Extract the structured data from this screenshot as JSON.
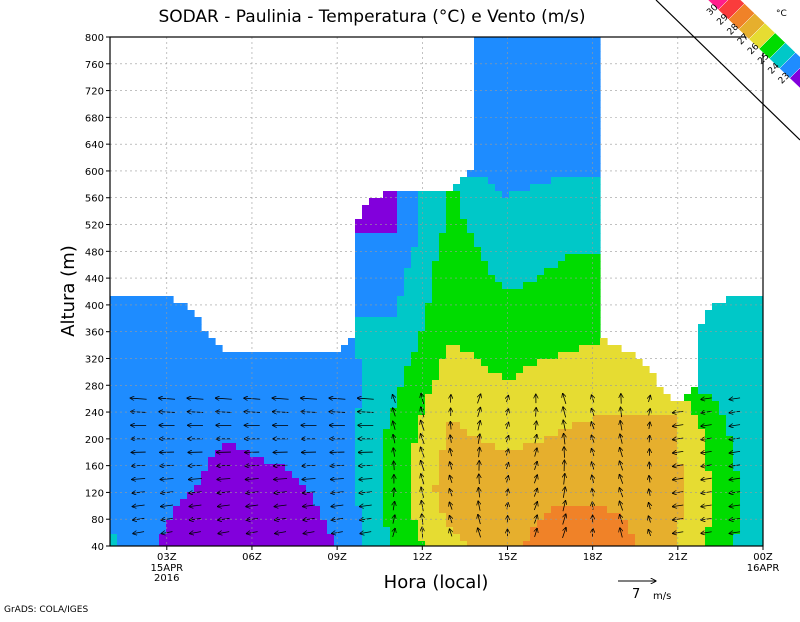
{
  "chart_data": {
    "type": "heatmap",
    "title": "SODAR - Paulinia - Temperatura (°C) e Vento (m/s)",
    "xlabel": "Hora (local)",
    "ylabel": "Altura (m)",
    "y_ticks": [
      "40",
      "80",
      "120",
      "160",
      "200",
      "240",
      "280",
      "320",
      "360",
      "400",
      "440",
      "480",
      "520",
      "560",
      "600",
      "640",
      "680",
      "720",
      "760",
      "800"
    ],
    "ylim": [
      40,
      800
    ],
    "x_ticks": [
      {
        "label": "03Z",
        "sub": [
          "15APR",
          "2016"
        ]
      },
      {
        "label": "06Z",
        "sub": []
      },
      {
        "label": "09Z",
        "sub": []
      },
      {
        "label": "12Z",
        "sub": []
      },
      {
        "label": "15Z",
        "sub": []
      },
      {
        "label": "18Z",
        "sub": []
      },
      {
        "label": "21Z",
        "sub": []
      },
      {
        "label": "00Z",
        "sub": [
          "16APR"
        ]
      }
    ],
    "x_hours": [
      3,
      6,
      9,
      12,
      15,
      18,
      21,
      24
    ],
    "xlim": [
      1,
      24
    ],
    "grid": true,
    "legend": {
      "placement": "top-right",
      "unit": "°C",
      "levels": [
        "30",
        "29",
        "28",
        "27",
        "26",
        "25",
        "24",
        "23"
      ],
      "colors": [
        "#ff1e8c",
        "#fa3c3c",
        "#f08228",
        "#e6af2d",
        "#e6dc32",
        "#00dc00",
        "#00c8c8",
        "#1e8cff",
        "#8200dc"
      ]
    },
    "vector_scale": {
      "value": "7",
      "unit": "m/s"
    },
    "credit": "GrADS: COLA/IGES",
    "temperature_grid": {
      "heights": [
        40,
        120,
        200,
        280,
        360,
        440,
        520,
        600
      ],
      "hours": [
        1,
        3,
        5,
        7,
        9,
        11,
        13,
        15,
        17,
        19,
        21,
        23,
        24
      ],
      "values_c": [
        [
          24.1,
          22.8,
          22.5,
          22.6,
          23.0,
          25.2,
          26.8,
          27.6,
          29.0,
          28.3,
          27.0,
          25.0,
          24.3
        ],
        [
          24.0,
          23.2,
          22.7,
          22.8,
          23.2,
          25.5,
          27.6,
          27.6,
          27.7,
          27.8,
          27.2,
          25.2,
          24.2
        ],
        [
          24.0,
          23.6,
          23.0,
          23.2,
          23.4,
          25.3,
          27.2,
          26.8,
          27.1,
          27.3,
          27.0,
          24.8,
          24.2
        ],
        [
          24.0,
          23.8,
          23.4,
          23.2,
          23.4,
          24.8,
          26.6,
          26.0,
          26.6,
          26.7,
          null,
          24.6,
          24.2
        ],
        [
          24.0,
          23.9,
          null,
          null,
          null,
          24.2,
          25.8,
          25.5,
          25.6,
          null,
          null,
          24.4,
          24.2
        ],
        [
          null,
          null,
          null,
          null,
          null,
          23.6,
          25.7,
          24.8,
          25.2,
          null,
          null,
          null,
          null
        ],
        [
          null,
          null,
          null,
          null,
          null,
          22.9,
          25.3,
          24.2,
          24.7,
          null,
          null,
          null,
          null
        ],
        [
          null,
          null,
          null,
          null,
          null,
          null,
          null,
          23.8,
          23.9,
          null,
          null,
          null,
          null
        ]
      ]
    }
  }
}
